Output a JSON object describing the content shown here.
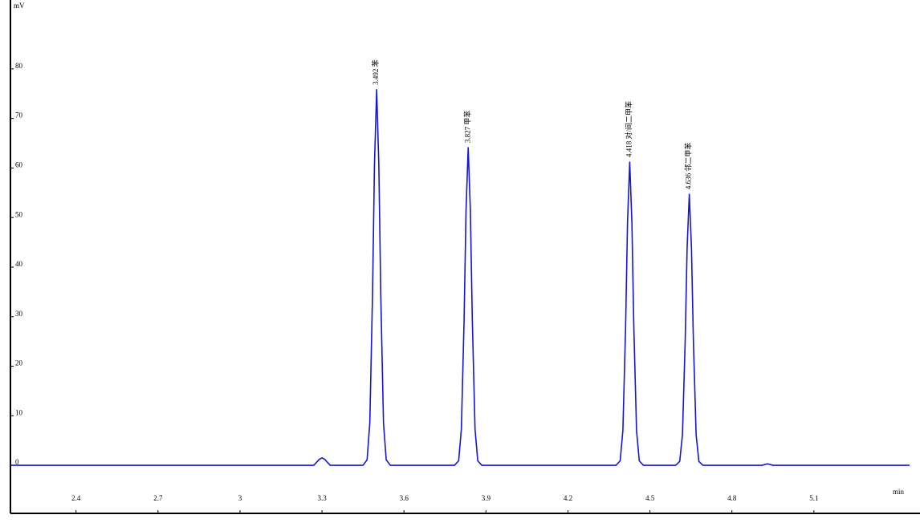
{
  "chart_data": {
    "type": "line",
    "xlabel": "min",
    "ylabel": "mV",
    "xlim": [
      2.16,
      5.45
    ],
    "ylim": [
      -9.7,
      93.9
    ],
    "xticks": [
      2.4,
      2.7,
      3,
      3.3,
      3.6,
      3.9,
      4.2,
      4.5,
      4.8,
      5.1
    ],
    "yticks": [
      0,
      10,
      20,
      30,
      40,
      50,
      60,
      70,
      80
    ],
    "series": [
      {
        "color": "#1515d8",
        "x": [
          2.16,
          3.27,
          3.29,
          3.3,
          3.31,
          3.33,
          3.45,
          3.465,
          3.475,
          3.485,
          3.492,
          3.5,
          3.508,
          3.515,
          3.525,
          3.535,
          3.55,
          3.785,
          3.8,
          3.81,
          3.82,
          3.827,
          3.835,
          3.843,
          3.85,
          3.86,
          3.87,
          3.885,
          4.376,
          4.391,
          4.401,
          4.411,
          4.418,
          4.426,
          4.434,
          4.441,
          4.451,
          4.461,
          4.476,
          4.594,
          4.609,
          4.619,
          4.629,
          4.636,
          4.644,
          4.652,
          4.659,
          4.669,
          4.679,
          4.694,
          4.91,
          4.93,
          4.95,
          5.45
        ],
        "values": [
          0,
          0,
          1.2,
          1.5,
          1.2,
          0,
          0,
          1.1,
          8.6,
          34.7,
          60.6,
          75.8,
          60.6,
          34.7,
          8.6,
          1.1,
          0,
          0,
          0.9,
          7.3,
          29.4,
          51.3,
          64.1,
          51.3,
          29.4,
          7.3,
          0.9,
          0,
          0,
          0.9,
          7.0,
          28.0,
          49.0,
          61.2,
          49.0,
          28.0,
          7.0,
          0.9,
          0,
          0,
          0.8,
          6.2,
          25.1,
          43.8,
          54.7,
          43.8,
          25.1,
          6.2,
          0.8,
          0,
          0,
          0.3,
          0,
          0
        ]
      }
    ],
    "annotations": [
      {
        "text": "3.492 苯",
        "x": 3.5,
        "y": 75.8
      },
      {
        "text": "3.827 甲苯",
        "x": 3.835,
        "y": 64.1
      },
      {
        "text": "4.418 对/间二甲苯",
        "x": 4.426,
        "y": 61.2
      },
      {
        "text": "4.636 邻二甲苯",
        "x": 4.644,
        "y": 54.7
      }
    ]
  }
}
